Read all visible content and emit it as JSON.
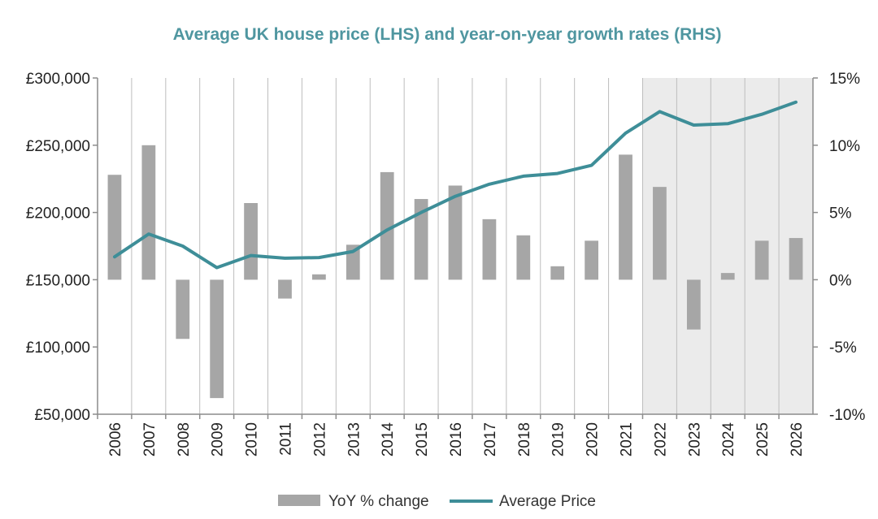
{
  "chart_data": {
    "type": "bar+line",
    "title": "Average UK house price (LHS) and year-on-year growth rates (RHS)",
    "categories": [
      "2006",
      "2007",
      "2008",
      "2009",
      "2010",
      "2011",
      "2012",
      "2013",
      "2014",
      "2015",
      "2016",
      "2017",
      "2018",
      "2019",
      "2020",
      "2021",
      "2022",
      "2023",
      "2024",
      "2025",
      "2026"
    ],
    "series": [
      {
        "name": "YoY % change",
        "type": "bar",
        "axis": "right",
        "values": [
          7.8,
          10.0,
          -4.4,
          -8.8,
          5.7,
          -1.4,
          0.4,
          2.6,
          8.0,
          6.0,
          7.0,
          4.5,
          3.3,
          1.0,
          2.9,
          9.3,
          6.9,
          -3.7,
          0.5,
          2.9,
          3.1
        ]
      },
      {
        "name": "Average Price",
        "type": "line",
        "axis": "left",
        "values": [
          167000,
          184000,
          175000,
          159000,
          168000,
          166000,
          166500,
          171000,
          187000,
          200000,
          212000,
          221000,
          227000,
          229000,
          235000,
          259000,
          275000,
          265000,
          266000,
          273000,
          282000
        ]
      }
    ],
    "left_axis": {
      "ylim": [
        50000,
        300000
      ],
      "ticks": [
        50000,
        100000,
        150000,
        200000,
        250000,
        300000
      ],
      "tick_labels": [
        "£50,000",
        "£100,000",
        "£150,000",
        "£200,000",
        "£250,000",
        "£300,000"
      ]
    },
    "right_axis": {
      "ylim": [
        -10,
        15
      ],
      "ticks": [
        -10,
        -5,
        0,
        5,
        10,
        15
      ],
      "tick_labels": [
        "-10%",
        "-5%",
        "0%",
        "5%",
        "10%",
        "15%"
      ]
    },
    "forecast_shading": {
      "start": "2022",
      "end": "2026"
    },
    "grid": "vertical",
    "legend": "bottom-center",
    "colors": {
      "title": "#4f96a0",
      "bars": "#a6a6a6",
      "line": "#3e8e98",
      "grid": "#bdbdbd",
      "shading": "#ebebeb",
      "axis": "#8c8c8c"
    }
  }
}
